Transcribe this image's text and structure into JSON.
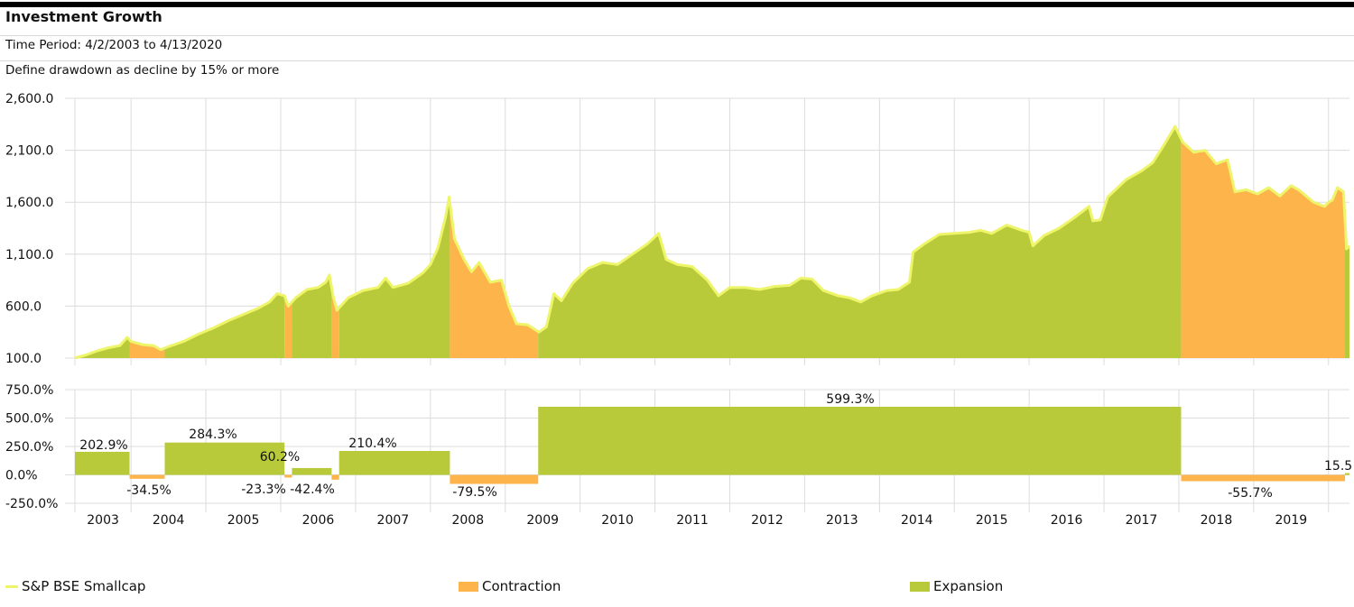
{
  "header": {
    "title": "Investment Growth",
    "time_period": "Time Period: 4/2/2003 to 4/13/2020",
    "definition": "Define drawdown as decline by 15% or more"
  },
  "colors": {
    "line": "#eef56a",
    "contraction": "#fdb44b",
    "expansion": "#b8ca39",
    "grid": "#dcdcdc"
  },
  "legend": [
    {
      "label": "S&P BSE Smallcap",
      "type": "line",
      "color": "#eef56a"
    },
    {
      "label": "Contraction",
      "type": "box",
      "color": "#fdb44b"
    },
    {
      "label": "Expansion",
      "type": "box",
      "color": "#b8ca39"
    }
  ],
  "chart_data": [
    {
      "type": "area",
      "title": "Investment Growth",
      "series_name": "S&P BSE Smallcap",
      "ylim": [
        100,
        2600
      ],
      "yticks": [
        100,
        600,
        1100,
        1600,
        2100,
        2600
      ],
      "ytick_labels": [
        "100.0",
        "600.0",
        "1,100.0",
        "1,600.0",
        "2,100.0",
        "2,600.0"
      ],
      "xlim": [
        2003.25,
        2020.28
      ],
      "x_tick_years": [
        2003,
        2004,
        2005,
        2006,
        2007,
        2008,
        2009,
        2010,
        2011,
        2012,
        2013,
        2014,
        2015,
        2016,
        2017,
        2018,
        2019
      ],
      "grid": true,
      "points": [
        [
          2003.25,
          100
        ],
        [
          2003.4,
          130
        ],
        [
          2003.55,
          170
        ],
        [
          2003.7,
          200
        ],
        [
          2003.85,
          220
        ],
        [
          2003.95,
          300
        ],
        [
          2004.0,
          260
        ],
        [
          2004.15,
          230
        ],
        [
          2004.3,
          220
        ],
        [
          2004.4,
          180
        ],
        [
          2004.5,
          210
        ],
        [
          2004.7,
          260
        ],
        [
          2004.9,
          330
        ],
        [
          2005.1,
          390
        ],
        [
          2005.3,
          460
        ],
        [
          2005.5,
          520
        ],
        [
          2005.7,
          580
        ],
        [
          2005.85,
          640
        ],
        [
          2005.95,
          720
        ],
        [
          2006.05,
          700
        ],
        [
          2006.1,
          600
        ],
        [
          2006.2,
          680
        ],
        [
          2006.35,
          760
        ],
        [
          2006.5,
          780
        ],
        [
          2006.6,
          830
        ],
        [
          2006.65,
          900
        ],
        [
          2006.7,
          700
        ],
        [
          2006.75,
          560
        ],
        [
          2006.9,
          680
        ],
        [
          2007.1,
          750
        ],
        [
          2007.3,
          780
        ],
        [
          2007.4,
          870
        ],
        [
          2007.5,
          780
        ],
        [
          2007.7,
          820
        ],
        [
          2007.9,
          920
        ],
        [
          2008.0,
          1000
        ],
        [
          2008.1,
          1160
        ],
        [
          2008.2,
          1450
        ],
        [
          2008.25,
          1650
        ],
        [
          2008.32,
          1250
        ],
        [
          2008.45,
          1050
        ],
        [
          2008.55,
          930
        ],
        [
          2008.65,
          1020
        ],
        [
          2008.8,
          830
        ],
        [
          2008.95,
          850
        ],
        [
          2009.05,
          600
        ],
        [
          2009.15,
          430
        ],
        [
          2009.3,
          420
        ],
        [
          2009.45,
          350
        ],
        [
          2009.55,
          400
        ],
        [
          2009.65,
          720
        ],
        [
          2009.75,
          650
        ],
        [
          2009.9,
          820
        ],
        [
          2010.1,
          960
        ],
        [
          2010.3,
          1020
        ],
        [
          2010.5,
          1000
        ],
        [
          2010.7,
          1100
        ],
        [
          2010.9,
          1200
        ],
        [
          2011.05,
          1300
        ],
        [
          2011.15,
          1050
        ],
        [
          2011.3,
          1000
        ],
        [
          2011.5,
          980
        ],
        [
          2011.7,
          850
        ],
        [
          2011.85,
          700
        ],
        [
          2012.0,
          780
        ],
        [
          2012.2,
          780
        ],
        [
          2012.4,
          760
        ],
        [
          2012.6,
          790
        ],
        [
          2012.8,
          800
        ],
        [
          2012.95,
          870
        ],
        [
          2013.1,
          860
        ],
        [
          2013.25,
          750
        ],
        [
          2013.45,
          700
        ],
        [
          2013.6,
          680
        ],
        [
          2013.75,
          640
        ],
        [
          2013.9,
          700
        ],
        [
          2014.1,
          750
        ],
        [
          2014.25,
          760
        ],
        [
          2014.4,
          830
        ],
        [
          2014.45,
          1120
        ],
        [
          2014.6,
          1200
        ],
        [
          2014.8,
          1290
        ],
        [
          2015.0,
          1300
        ],
        [
          2015.2,
          1310
        ],
        [
          2015.35,
          1330
        ],
        [
          2015.5,
          1300
        ],
        [
          2015.7,
          1380
        ],
        [
          2015.9,
          1330
        ],
        [
          2016.0,
          1310
        ],
        [
          2016.05,
          1180
        ],
        [
          2016.2,
          1280
        ],
        [
          2016.4,
          1350
        ],
        [
          2016.6,
          1450
        ],
        [
          2016.8,
          1560
        ],
        [
          2016.85,
          1420
        ],
        [
          2016.95,
          1430
        ],
        [
          2017.05,
          1650
        ],
        [
          2017.3,
          1820
        ],
        [
          2017.5,
          1900
        ],
        [
          2017.65,
          1980
        ],
        [
          2017.8,
          2150
        ],
        [
          2017.95,
          2330
        ],
        [
          2018.05,
          2180
        ],
        [
          2018.2,
          2080
        ],
        [
          2018.35,
          2100
        ],
        [
          2018.5,
          1970
        ],
        [
          2018.65,
          2010
        ],
        [
          2018.75,
          1700
        ],
        [
          2018.9,
          1720
        ],
        [
          2019.05,
          1680
        ],
        [
          2019.2,
          1740
        ],
        [
          2019.35,
          1660
        ],
        [
          2019.5,
          1760
        ],
        [
          2019.6,
          1720
        ],
        [
          2019.8,
          1600
        ],
        [
          2019.95,
          1560
        ],
        [
          2020.0,
          1600
        ],
        [
          2020.05,
          1620
        ],
        [
          2020.12,
          1740
        ],
        [
          2020.2,
          1700
        ],
        [
          2020.24,
          1150
        ],
        [
          2020.28,
          1180
        ]
      ],
      "regions": [
        {
          "type": "expansion",
          "start": 2003.25,
          "end": 2003.98
        },
        {
          "type": "contraction",
          "start": 2003.98,
          "end": 2004.45
        },
        {
          "type": "expansion",
          "start": 2004.45,
          "end": 2006.05
        },
        {
          "type": "contraction",
          "start": 2006.05,
          "end": 2006.15
        },
        {
          "type": "expansion",
          "start": 2006.15,
          "end": 2006.68
        },
        {
          "type": "contraction",
          "start": 2006.68,
          "end": 2006.78
        },
        {
          "type": "expansion",
          "start": 2006.78,
          "end": 2008.26
        },
        {
          "type": "contraction",
          "start": 2008.26,
          "end": 2009.44
        },
        {
          "type": "expansion",
          "start": 2009.44,
          "end": 2018.03
        },
        {
          "type": "contraction",
          "start": 2018.03,
          "end": 2020.22
        },
        {
          "type": "expansion",
          "start": 2020.22,
          "end": 2020.28
        }
      ]
    },
    {
      "type": "bar",
      "title": "Drawdown / Expansion Periods",
      "ylim": [
        -250,
        750
      ],
      "yticks": [
        -250,
        0,
        250,
        500,
        750
      ],
      "ytick_labels": [
        "-250.0%",
        "0.0%",
        "250.0%",
        "500.0%",
        "750.0%"
      ],
      "x_tick_years": [
        2003,
        2004,
        2005,
        2006,
        2007,
        2008,
        2009,
        2010,
        2011,
        2012,
        2013,
        2014,
        2015,
        2016,
        2017,
        2018,
        2019
      ],
      "grid": true,
      "bars": [
        {
          "type": "expansion",
          "start": 2003.25,
          "end": 2003.98,
          "value": 202.9,
          "label": "202.9%"
        },
        {
          "type": "contraction",
          "start": 2003.98,
          "end": 2004.45,
          "value": -34.5,
          "label": "-34.5%"
        },
        {
          "type": "expansion",
          "start": 2004.45,
          "end": 2006.05,
          "value": 284.3,
          "label": "284.3%"
        },
        {
          "type": "contraction",
          "start": 2006.05,
          "end": 2006.15,
          "value": -23.3,
          "label": "-23.3%"
        },
        {
          "type": "expansion",
          "start": 2006.15,
          "end": 2006.68,
          "value": 60.2,
          "label": "60.2%"
        },
        {
          "type": "contraction",
          "start": 2006.68,
          "end": 2006.78,
          "value": -42.4,
          "label": "-42.4%"
        },
        {
          "type": "expansion",
          "start": 2006.78,
          "end": 2008.26,
          "value": 210.4,
          "label": "210.4%"
        },
        {
          "type": "contraction",
          "start": 2008.26,
          "end": 2009.44,
          "value": -79.5,
          "label": "-79.5%"
        },
        {
          "type": "expansion",
          "start": 2009.44,
          "end": 2018.03,
          "value": 599.3,
          "label": "599.3%"
        },
        {
          "type": "contraction",
          "start": 2018.03,
          "end": 2020.22,
          "value": -55.7,
          "label": "-55.7%"
        },
        {
          "type": "expansion",
          "start": 2020.22,
          "end": 2020.28,
          "value": 15.5,
          "label": "15.5"
        }
      ]
    }
  ]
}
